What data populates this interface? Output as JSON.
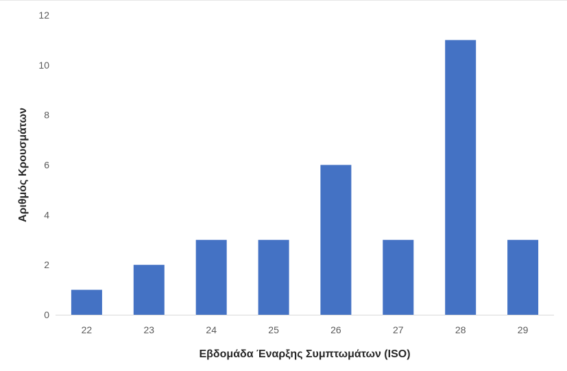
{
  "chart_data": {
    "type": "bar",
    "categories": [
      "22",
      "23",
      "24",
      "25",
      "26",
      "27",
      "28",
      "29"
    ],
    "values": [
      1,
      2,
      3,
      3,
      6,
      3,
      11,
      3
    ],
    "title": "",
    "xlabel": "Εβδομάδα Έναρξης Συμπτωμάτων (ISO)",
    "ylabel": "Αριθμός Κρουσμάτων",
    "ylim": [
      0,
      12
    ],
    "yticks": [
      0,
      2,
      4,
      6,
      8,
      10,
      12
    ],
    "grid": false,
    "legend": "none",
    "bar_color": "#4472C4",
    "axis_color": "#D9D9D9"
  }
}
